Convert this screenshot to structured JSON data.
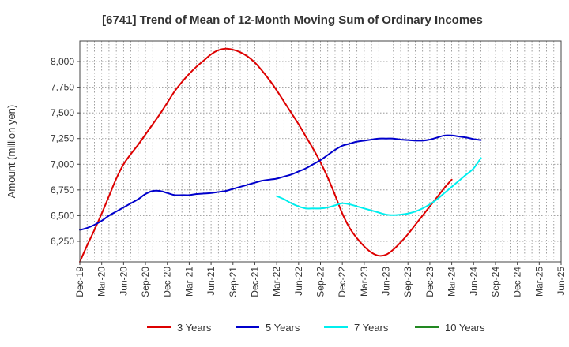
{
  "chart_data": {
    "type": "line",
    "title": "[6741]  Trend of Mean of 12-Month Moving Sum of Ordinary Incomes",
    "xlabel": "",
    "ylabel": "Amount (million yen)",
    "ylim": [
      6050,
      8200
    ],
    "yticks": [
      6250,
      6500,
      6750,
      7000,
      7250,
      7500,
      7750,
      8000
    ],
    "ytick_labels": [
      "6,250",
      "6,500",
      "6,750",
      "7,000",
      "7,250",
      "7,500",
      "7,750",
      "8,000"
    ],
    "x_range_months": [
      0,
      66
    ],
    "x_ticks": [
      {
        "label": "Dec-19",
        "m": 0
      },
      {
        "label": "Mar-20",
        "m": 3
      },
      {
        "label": "Jun-20",
        "m": 6
      },
      {
        "label": "Sep-20",
        "m": 9
      },
      {
        "label": "Dec-20",
        "m": 12
      },
      {
        "label": "Mar-21",
        "m": 15
      },
      {
        "label": "Jun-21",
        "m": 18
      },
      {
        "label": "Sep-21",
        "m": 21
      },
      {
        "label": "Dec-21",
        "m": 24
      },
      {
        "label": "Mar-22",
        "m": 27
      },
      {
        "label": "Jun-22",
        "m": 30
      },
      {
        "label": "Sep-22",
        "m": 33
      },
      {
        "label": "Dec-22",
        "m": 36
      },
      {
        "label": "Mar-23",
        "m": 39
      },
      {
        "label": "Jun-23",
        "m": 42
      },
      {
        "label": "Sep-23",
        "m": 45
      },
      {
        "label": "Dec-23",
        "m": 48
      },
      {
        "label": "Mar-24",
        "m": 51
      },
      {
        "label": "Jun-24",
        "m": 54
      },
      {
        "label": "Sep-24",
        "m": 57
      },
      {
        "label": "Dec-24",
        "m": 60
      },
      {
        "label": "Mar-25",
        "m": 63
      },
      {
        "label": "Jun-25",
        "m": 66
      }
    ],
    "series": [
      {
        "name": "3 Years",
        "color": "#dd0000",
        "points": [
          [
            0,
            6050
          ],
          [
            1,
            6210
          ],
          [
            2,
            6360
          ],
          [
            3,
            6520
          ],
          [
            4,
            6690
          ],
          [
            5,
            6860
          ],
          [
            6,
            7000
          ],
          [
            7,
            7100
          ],
          [
            8,
            7190
          ],
          [
            9,
            7290
          ],
          [
            10,
            7390
          ],
          [
            11,
            7490
          ],
          [
            12,
            7600
          ],
          [
            13,
            7710
          ],
          [
            14,
            7800
          ],
          [
            15,
            7880
          ],
          [
            16,
            7950
          ],
          [
            17,
            8010
          ],
          [
            18,
            8070
          ],
          [
            19,
            8110
          ],
          [
            20,
            8125
          ],
          [
            21,
            8115
          ],
          [
            22,
            8090
          ],
          [
            23,
            8050
          ],
          [
            24,
            7990
          ],
          [
            25,
            7910
          ],
          [
            26,
            7820
          ],
          [
            27,
            7720
          ],
          [
            28,
            7610
          ],
          [
            29,
            7500
          ],
          [
            30,
            7390
          ],
          [
            31,
            7270
          ],
          [
            32,
            7150
          ],
          [
            33,
            7020
          ],
          [
            34,
            6870
          ],
          [
            35,
            6700
          ],
          [
            36,
            6520
          ],
          [
            37,
            6380
          ],
          [
            38,
            6280
          ],
          [
            39,
            6200
          ],
          [
            40,
            6140
          ],
          [
            41,
            6110
          ],
          [
            42,
            6120
          ],
          [
            43,
            6170
          ],
          [
            44,
            6240
          ],
          [
            45,
            6320
          ],
          [
            46,
            6410
          ],
          [
            47,
            6500
          ],
          [
            48,
            6590
          ],
          [
            49,
            6680
          ],
          [
            50,
            6770
          ],
          [
            51,
            6850
          ]
        ]
      },
      {
        "name": "5 Years",
        "color": "#0000cc",
        "points": [
          [
            0,
            6360
          ],
          [
            1,
            6380
          ],
          [
            2,
            6410
          ],
          [
            3,
            6450
          ],
          [
            4,
            6500
          ],
          [
            5,
            6540
          ],
          [
            6,
            6580
          ],
          [
            7,
            6620
          ],
          [
            8,
            6660
          ],
          [
            9,
            6710
          ],
          [
            10,
            6740
          ],
          [
            11,
            6740
          ],
          [
            12,
            6720
          ],
          [
            13,
            6700
          ],
          [
            14,
            6700
          ],
          [
            15,
            6700
          ],
          [
            16,
            6710
          ],
          [
            17,
            6715
          ],
          [
            18,
            6720
          ],
          [
            19,
            6730
          ],
          [
            20,
            6740
          ],
          [
            21,
            6760
          ],
          [
            22,
            6780
          ],
          [
            23,
            6800
          ],
          [
            24,
            6820
          ],
          [
            25,
            6840
          ],
          [
            26,
            6850
          ],
          [
            27,
            6860
          ],
          [
            28,
            6880
          ],
          [
            29,
            6900
          ],
          [
            30,
            6930
          ],
          [
            31,
            6960
          ],
          [
            32,
            7000
          ],
          [
            33,
            7040
          ],
          [
            34,
            7090
          ],
          [
            35,
            7140
          ],
          [
            36,
            7180
          ],
          [
            37,
            7200
          ],
          [
            38,
            7220
          ],
          [
            39,
            7230
          ],
          [
            40,
            7240
          ],
          [
            41,
            7250
          ],
          [
            42,
            7250
          ],
          [
            43,
            7250
          ],
          [
            44,
            7240
          ],
          [
            45,
            7235
          ],
          [
            46,
            7230
          ],
          [
            47,
            7230
          ],
          [
            48,
            7240
          ],
          [
            49,
            7260
          ],
          [
            50,
            7280
          ],
          [
            51,
            7280
          ],
          [
            52,
            7270
          ],
          [
            53,
            7260
          ],
          [
            54,
            7245
          ],
          [
            55,
            7235
          ]
        ]
      },
      {
        "name": "7 Years",
        "color": "#00eeee",
        "points": [
          [
            27,
            6690
          ],
          [
            28,
            6660
          ],
          [
            29,
            6620
          ],
          [
            30,
            6590
          ],
          [
            31,
            6570
          ],
          [
            32,
            6570
          ],
          [
            33,
            6570
          ],
          [
            34,
            6580
          ],
          [
            35,
            6600
          ],
          [
            36,
            6620
          ],
          [
            37,
            6610
          ],
          [
            38,
            6590
          ],
          [
            39,
            6570
          ],
          [
            40,
            6550
          ],
          [
            41,
            6530
          ],
          [
            42,
            6510
          ],
          [
            43,
            6505
          ],
          [
            44,
            6510
          ],
          [
            45,
            6520
          ],
          [
            46,
            6540
          ],
          [
            47,
            6570
          ],
          [
            48,
            6610
          ],
          [
            49,
            6660
          ],
          [
            50,
            6720
          ],
          [
            51,
            6780
          ],
          [
            52,
            6840
          ],
          [
            53,
            6900
          ],
          [
            54,
            6960
          ],
          [
            55,
            7060
          ]
        ]
      },
      {
        "name": "10 Years",
        "color": "#228822",
        "points": []
      }
    ],
    "legend": [
      {
        "name": "3 Years",
        "color": "#dd0000"
      },
      {
        "name": "5 Years",
        "color": "#0000cc"
      },
      {
        "name": "7 Years",
        "color": "#00eeee"
      },
      {
        "name": "10 Years",
        "color": "#228822"
      }
    ],
    "legend_position": "bottom-center",
    "grid": true
  }
}
